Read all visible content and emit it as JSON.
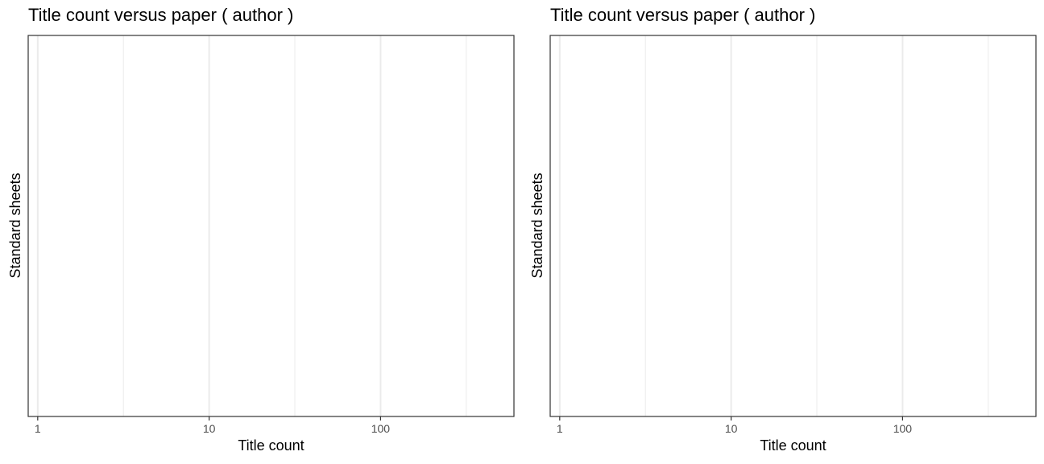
{
  "chart_data": [
    {
      "type": "scatter",
      "title": "Title count versus paper ( author )",
      "xlabel": "Title count",
      "ylabel": "Standard sheets",
      "x_scale": "log10",
      "xlim": [
        0.88,
        600
      ],
      "x_ticks": [
        {
          "value": 1,
          "label": "1"
        },
        {
          "value": 10,
          "label": "10"
        },
        {
          "value": 100,
          "label": "100"
        }
      ],
      "x_minor_gridlines": [
        3.162,
        31.62,
        316.2
      ],
      "grid": true,
      "series": [],
      "colors": {
        "gridline": "#ebebeb",
        "panel_border": "#333333",
        "tick_text": "#4d4d4d"
      }
    },
    {
      "type": "scatter",
      "title": "Title count versus paper ( author )",
      "xlabel": "Title count",
      "ylabel": "Standard sheets",
      "x_scale": "log10",
      "xlim": [
        0.88,
        600
      ],
      "x_ticks": [
        {
          "value": 1,
          "label": "1"
        },
        {
          "value": 10,
          "label": "10"
        },
        {
          "value": 100,
          "label": "100"
        }
      ],
      "x_minor_gridlines": [
        3.162,
        31.62,
        316.2
      ],
      "grid": true,
      "series": [],
      "colors": {
        "gridline": "#ebebeb",
        "panel_border": "#333333",
        "tick_text": "#4d4d4d"
      }
    }
  ]
}
